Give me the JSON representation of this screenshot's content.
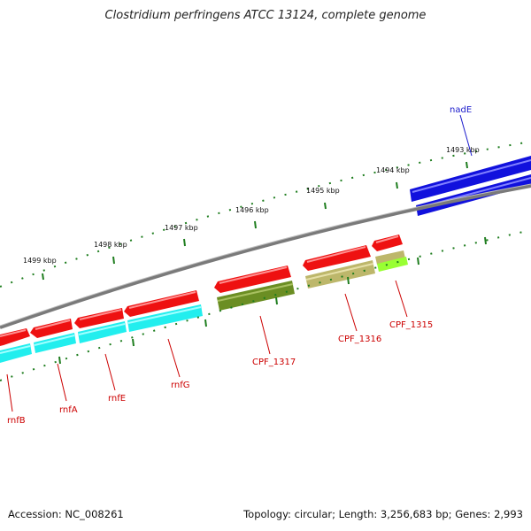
{
  "title": "Clostridium perfringens ATCC 13124, complete genome",
  "footer": {
    "accession": "Accession: NC_008261",
    "info": "Topology: circular; Length: 3,256,683 bp; Genes: 2,993"
  },
  "colors": {
    "backbone": "#888888",
    "tick": "#1e7d1e",
    "gene_red": "#ee1111",
    "gene_blue": "#1111dd",
    "gene_cyan": "#22eeee",
    "gene_olive": "#6b8e23",
    "gene_khaki": "#bdb76b",
    "gene_lime": "#99ff33",
    "label_red": "#cc0000",
    "label_blue": "#1a1acc"
  },
  "ticks": [
    "1493 kbp",
    "1494 kbp",
    "1495 kbp",
    "1496 kbp",
    "1497 kbp",
    "1498 kbp",
    "1499 kbp"
  ],
  "genes": {
    "nadE": "nadE",
    "rnfB": "rnfB",
    "rnfA": "rnfA",
    "rnfE": "rnfE",
    "rnfG": "rnfG",
    "CPF_1317": "CPF_1317",
    "CPF_1316": "CPF_1316",
    "CPF_1315": "CPF_1315"
  }
}
